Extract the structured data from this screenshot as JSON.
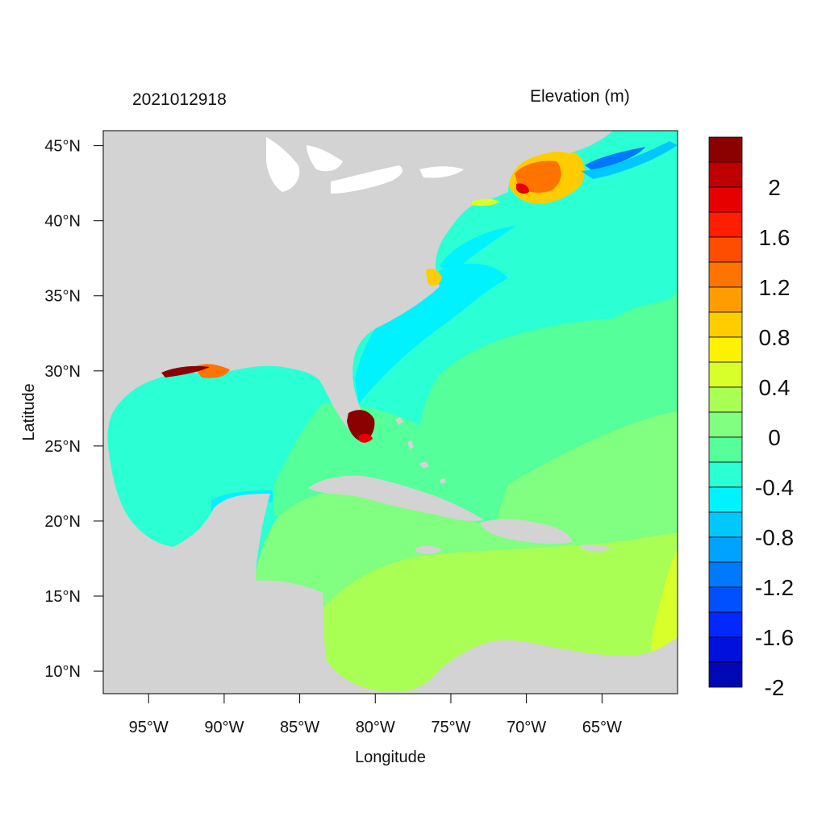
{
  "header": {
    "datetime_label": "2021012918",
    "variable_label": "Elevation (m)"
  },
  "axes": {
    "x_title": "Longitude",
    "y_title": "Latitude",
    "lon_range": [
      -98,
      -60
    ],
    "lat_range": [
      8.5,
      46
    ],
    "lon_ticks": [
      {
        "value": -95,
        "label": "95°W"
      },
      {
        "value": -90,
        "label": "90°W"
      },
      {
        "value": -85,
        "label": "85°W"
      },
      {
        "value": -80,
        "label": "80°W"
      },
      {
        "value": -75,
        "label": "75°W"
      },
      {
        "value": -70,
        "label": "70°W"
      },
      {
        "value": -65,
        "label": "65°W"
      }
    ],
    "lat_ticks": [
      {
        "value": 45,
        "label": "45°N"
      },
      {
        "value": 40,
        "label": "40°N"
      },
      {
        "value": 35,
        "label": "35°N"
      },
      {
        "value": 30,
        "label": "30°N"
      },
      {
        "value": 25,
        "label": "25°N"
      },
      {
        "value": 20,
        "label": "20°N"
      },
      {
        "value": 15,
        "label": "15°N"
      },
      {
        "value": 10,
        "label": "10°N"
      }
    ]
  },
  "legend": {
    "colors": [
      "#8b0000",
      "#be0000",
      "#e60000",
      "#ff1e00",
      "#ff4d00",
      "#ff7400",
      "#ff9d00",
      "#ffcc00",
      "#fff200",
      "#d9ff2b",
      "#aaff55",
      "#80ff80",
      "#55ff99",
      "#2bffd4",
      "#00f2ff",
      "#00c8ff",
      "#00a2ff",
      "#0078ff",
      "#0050ff",
      "#0028ff",
      "#0010dd",
      "#0008b3"
    ],
    "labels": [
      {
        "text": "2",
        "after_color_index": 1
      },
      {
        "text": "1.6",
        "after_color_index": 3
      },
      {
        "text": "1.2",
        "after_color_index": 5
      },
      {
        "text": "0.8",
        "after_color_index": 7
      },
      {
        "text": "0.4",
        "after_color_index": 9
      },
      {
        "text": "0",
        "after_color_index": 11
      },
      {
        "text": "-0.4",
        "after_color_index": 13
      },
      {
        "text": "-0.8",
        "after_color_index": 15
      },
      {
        "text": "-1.2",
        "after_color_index": 17
      },
      {
        "text": "-1.6",
        "after_color_index": 19
      },
      {
        "text": "-2",
        "after_color_index": 21
      }
    ]
  },
  "colors": {
    "land": "#d3d3d3",
    "lakes": "#ffffff",
    "ocean_base": "#2bffd4",
    "gulf": "#2bffd4",
    "caribbean": "#80ff80",
    "south_caribbean": "#aaff55",
    "open_atlantic": "#55ff99",
    "shelf_low": "#00f2ff",
    "surge_high": "#8b0000"
  }
}
